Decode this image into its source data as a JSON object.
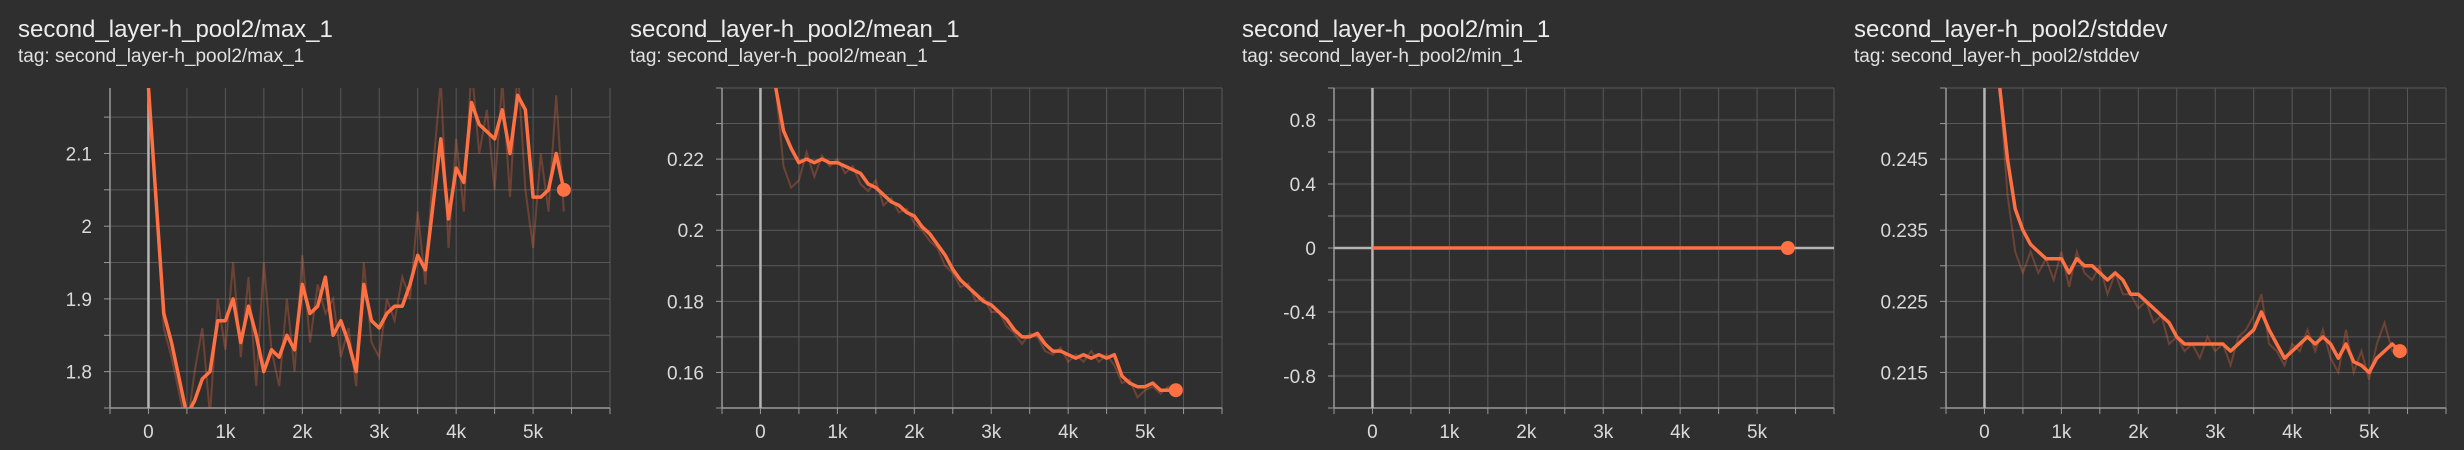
{
  "colors": {
    "background": "#2f2f2f",
    "grid": "#585858",
    "axis": "#9a9a9a",
    "series": "#ff7043",
    "raw_series": "#ff7043"
  },
  "chart_data": [
    {
      "type": "line",
      "title": "second_layer-h_pool2/max_1",
      "tag": "tag: second_layer-h_pool2/max_1",
      "xlim": [
        -500,
        6000
      ],
      "ylim": [
        1.75,
        2.19
      ],
      "x_ticks": [
        0,
        1000,
        2000,
        3000,
        4000,
        5000
      ],
      "x_tick_labels": [
        "0",
        "1k",
        "2k",
        "3k",
        "4k",
        "5k"
      ],
      "y_ticks": [
        1.8,
        1.9,
        2.0,
        2.1
      ],
      "y_tick_labels": [
        "1.8",
        "1.9",
        "2",
        "2.1"
      ],
      "grid": true,
      "series": [
        {
          "x": [
            0,
            200,
            300,
            500,
            600,
            700,
            800,
            900,
            1000,
            1100,
            1200,
            1300,
            1400,
            1500,
            1600,
            1700,
            1800,
            1900,
            2000,
            2100,
            2200,
            2300,
            2400,
            2500,
            2600,
            2700,
            2800,
            2900,
            3000,
            3100,
            3200,
            3300,
            3400,
            3500,
            3600,
            3700,
            3800,
            3900,
            4000,
            4100,
            4200,
            4300,
            4400,
            4500,
            4600,
            4700,
            4800,
            4900,
            5000,
            5100,
            5200,
            5300,
            5400
          ],
          "y": [
            2.19,
            1.88,
            1.84,
            1.74,
            1.76,
            1.79,
            1.8,
            1.87,
            1.87,
            1.9,
            1.84,
            1.89,
            1.85,
            1.8,
            1.83,
            1.82,
            1.85,
            1.83,
            1.92,
            1.88,
            1.89,
            1.93,
            1.85,
            1.87,
            1.84,
            1.8,
            1.92,
            1.87,
            1.86,
            1.88,
            1.89,
            1.89,
            1.92,
            1.96,
            1.94,
            2.03,
            2.12,
            2.01,
            2.08,
            2.06,
            2.17,
            2.14,
            2.13,
            2.12,
            2.16,
            2.1,
            2.18,
            2.16,
            2.04,
            2.04,
            2.05,
            2.1,
            2.05
          ],
          "raw_y": [
            2.19,
            1.86,
            1.82,
            1.72,
            1.8,
            1.86,
            1.74,
            1.9,
            1.83,
            1.95,
            1.82,
            1.93,
            1.78,
            1.95,
            1.83,
            1.78,
            1.9,
            1.8,
            1.96,
            1.84,
            1.92,
            1.88,
            1.9,
            1.82,
            1.86,
            1.78,
            1.95,
            1.84,
            1.82,
            1.9,
            1.87,
            1.93,
            1.9,
            2.02,
            1.92,
            2.08,
            2.2,
            1.97,
            2.12,
            2.02,
            2.22,
            2.1,
            2.16,
            2.05,
            2.2,
            2.04,
            2.22,
            2.05,
            1.97,
            2.1,
            2.02,
            2.18,
            2.02
          ]
        }
      ]
    },
    {
      "type": "line",
      "title": "second_layer-h_pool2/mean_1",
      "tag": "tag: second_layer-h_pool2/mean_1",
      "xlim": [
        -500,
        6000
      ],
      "ylim": [
        0.15,
        0.24
      ],
      "x_ticks": [
        0,
        1000,
        2000,
        3000,
        4000,
        5000
      ],
      "x_tick_labels": [
        "0",
        "1k",
        "2k",
        "3k",
        "4k",
        "5k"
      ],
      "y_ticks": [
        0.16,
        0.18,
        0.2,
        0.22
      ],
      "y_tick_labels": [
        "0.16",
        "0.18",
        "0.2",
        "0.22"
      ],
      "grid": true,
      "series": [
        {
          "x": [
            200,
            300,
            400,
            500,
            600,
            700,
            800,
            900,
            1000,
            1100,
            1200,
            1300,
            1400,
            1500,
            1600,
            1700,
            1800,
            1900,
            2000,
            2100,
            2200,
            2300,
            2400,
            2500,
            2600,
            2700,
            2800,
            2900,
            3000,
            3100,
            3200,
            3300,
            3400,
            3500,
            3600,
            3700,
            3800,
            3900,
            4000,
            4100,
            4200,
            4300,
            4400,
            4500,
            4600,
            4700,
            4800,
            4900,
            5000,
            5100,
            5200,
            5300,
            5400
          ],
          "y": [
            0.24,
            0.228,
            0.223,
            0.219,
            0.22,
            0.219,
            0.22,
            0.219,
            0.219,
            0.218,
            0.217,
            0.216,
            0.213,
            0.212,
            0.21,
            0.208,
            0.207,
            0.205,
            0.204,
            0.201,
            0.199,
            0.196,
            0.193,
            0.189,
            0.186,
            0.184,
            0.182,
            0.18,
            0.179,
            0.177,
            0.175,
            0.172,
            0.17,
            0.17,
            0.171,
            0.168,
            0.166,
            0.166,
            0.165,
            0.164,
            0.165,
            0.164,
            0.165,
            0.164,
            0.165,
            0.159,
            0.157,
            0.156,
            0.156,
            0.157,
            0.155,
            0.155,
            0.155
          ],
          "raw_y": [
            0.24,
            0.218,
            0.212,
            0.214,
            0.222,
            0.215,
            0.221,
            0.218,
            0.22,
            0.216,
            0.218,
            0.213,
            0.211,
            0.214,
            0.207,
            0.209,
            0.205,
            0.206,
            0.202,
            0.2,
            0.197,
            0.195,
            0.19,
            0.188,
            0.184,
            0.185,
            0.18,
            0.181,
            0.177,
            0.177,
            0.173,
            0.171,
            0.168,
            0.171,
            0.17,
            0.166,
            0.165,
            0.167,
            0.163,
            0.165,
            0.163,
            0.166,
            0.163,
            0.165,
            0.162,
            0.157,
            0.158,
            0.153,
            0.155,
            0.156,
            0.154,
            0.156,
            0.154
          ]
        }
      ]
    },
    {
      "type": "line",
      "title": "second_layer-h_pool2/min_1",
      "tag": "tag: second_layer-h_pool2/min_1",
      "xlim": [
        -500,
        6000
      ],
      "ylim": [
        -1.0,
        1.0
      ],
      "x_ticks": [
        0,
        1000,
        2000,
        3000,
        4000,
        5000
      ],
      "x_tick_labels": [
        "0",
        "1k",
        "2k",
        "3k",
        "4k",
        "5k"
      ],
      "y_ticks": [
        -0.8,
        -0.4,
        0,
        0.4,
        0.8
      ],
      "y_tick_labels": [
        "-0.8",
        "-0.4",
        "0",
        "0.4",
        "0.8"
      ],
      "grid": true,
      "series": [
        {
          "x": [
            0,
            5400
          ],
          "y": [
            0,
            0
          ],
          "raw_y": [
            0,
            0
          ]
        }
      ]
    },
    {
      "type": "line",
      "title": "second_layer-h_pool2/stddev",
      "tag": "tag: second_layer-h_pool2/stddev",
      "xlim": [
        -500,
        6000
      ],
      "ylim": [
        0.21,
        0.255
      ],
      "x_ticks": [
        0,
        1000,
        2000,
        3000,
        4000,
        5000
      ],
      "x_tick_labels": [
        "0",
        "1k",
        "2k",
        "3k",
        "4k",
        "5k"
      ],
      "y_ticks": [
        0.215,
        0.225,
        0.235,
        0.245
      ],
      "y_tick_labels": [
        "0.215",
        "0.225",
        "0.235",
        "0.245"
      ],
      "grid": true,
      "series": [
        {
          "x": [
            200,
            300,
            400,
            500,
            600,
            700,
            800,
            900,
            1000,
            1100,
            1200,
            1300,
            1400,
            1500,
            1600,
            1700,
            1800,
            1900,
            2000,
            2100,
            2200,
            2300,
            2400,
            2500,
            2600,
            2700,
            2800,
            2900,
            3000,
            3100,
            3200,
            3300,
            3400,
            3500,
            3600,
            3700,
            3800,
            3900,
            4000,
            4100,
            4200,
            4300,
            4400,
            4500,
            4600,
            4700,
            4800,
            4900,
            5000,
            5100,
            5200,
            5300,
            5400
          ],
          "y": [
            0.255,
            0.245,
            0.238,
            0.235,
            0.233,
            0.232,
            0.231,
            0.231,
            0.231,
            0.229,
            0.231,
            0.23,
            0.23,
            0.229,
            0.228,
            0.229,
            0.228,
            0.226,
            0.226,
            0.225,
            0.224,
            0.223,
            0.222,
            0.22,
            0.219,
            0.219,
            0.219,
            0.219,
            0.219,
            0.219,
            0.218,
            0.219,
            0.22,
            0.221,
            0.2235,
            0.221,
            0.219,
            0.217,
            0.218,
            0.219,
            0.22,
            0.219,
            0.22,
            0.219,
            0.217,
            0.219,
            0.2165,
            0.216,
            0.215,
            0.217,
            0.218,
            0.219,
            0.218
          ],
          "raw_y": [
            0.255,
            0.24,
            0.232,
            0.229,
            0.232,
            0.229,
            0.231,
            0.228,
            0.232,
            0.227,
            0.232,
            0.229,
            0.228,
            0.23,
            0.226,
            0.229,
            0.226,
            0.226,
            0.224,
            0.225,
            0.222,
            0.223,
            0.219,
            0.22,
            0.218,
            0.219,
            0.217,
            0.22,
            0.218,
            0.219,
            0.216,
            0.22,
            0.221,
            0.223,
            0.226,
            0.219,
            0.218,
            0.216,
            0.219,
            0.218,
            0.221,
            0.218,
            0.221,
            0.217,
            0.215,
            0.221,
            0.215,
            0.218,
            0.214,
            0.219,
            0.222,
            0.218,
            0.217
          ]
        }
      ]
    }
  ]
}
